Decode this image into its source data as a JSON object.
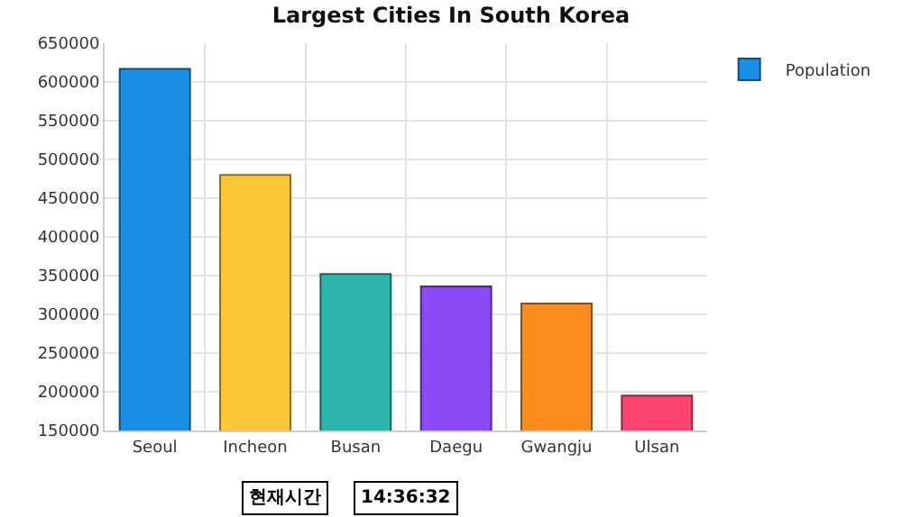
{
  "chart_data": {
    "type": "bar",
    "title": "Largest Cities In South Korea",
    "categories": [
      "Seoul",
      "Incheon",
      "Busan",
      "Daegu",
      "Gwangju",
      "Ulsan"
    ],
    "series": [
      {
        "name": "Population",
        "colors": [
          "#1a8fe3",
          "#fcc736",
          "#2bb5ab",
          "#8c4af7",
          "#fd8c1f",
          "#fb4570"
        ],
        "values": [
          617000,
          480000,
          352000,
          336000,
          314000,
          195000
        ]
      }
    ],
    "ylim": [
      150000,
      650000
    ],
    "yticks": [
      150000,
      200000,
      250000,
      300000,
      350000,
      400000,
      450000,
      500000,
      550000,
      600000,
      650000
    ],
    "grid": true,
    "legend": "top right",
    "annotations": [
      "현재시간",
      "14:36:32"
    ]
  }
}
